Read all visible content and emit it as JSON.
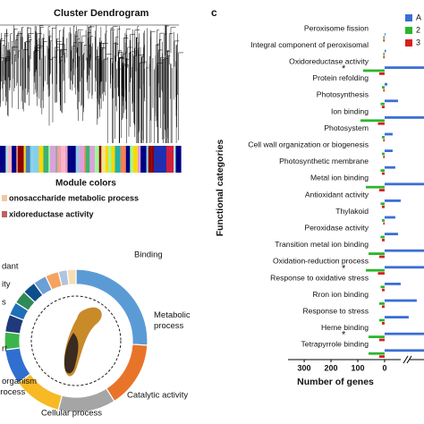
{
  "panel_label": "c",
  "dendrogram": {
    "title": "Cluster Dendrogram",
    "module_label": "Module colors",
    "terms": [
      "onosaccharide metabolic process",
      "xidoreductase activity"
    ]
  },
  "chart_data": [
    {
      "type": "pie",
      "donut": true,
      "categories": [
        "Binding",
        "Metabolic process",
        "Catalytic activity",
        "Cellular process",
        "organism process",
        "rt",
        null,
        "s",
        null,
        "ity",
        "dant",
        null,
        null,
        null
      ],
      "values": [
        26,
        15,
        13,
        11,
        8,
        4,
        4,
        3,
        3,
        3,
        3,
        3,
        2,
        2
      ],
      "colors": [
        "#5b9bd5",
        "#e8742a",
        "#a5a5a5",
        "#f7b924",
        "#2f6fd0",
        "#3cb44b",
        "#1f3a7a",
        "#1e6fb8",
        "#2e8b57",
        "#0d4e8a",
        "#6a9fd8",
        "#f4a460",
        "#b0c4de",
        "#f5deb3"
      ]
    },
    {
      "type": "bar",
      "orientation": "horizontal",
      "ylabel": "Functional categories",
      "xlabel": "Number of genes",
      "categories": [
        "Peroxisome fission",
        "Integral component of peroxisomal",
        "Oxidoreductase activity",
        "Protein refolding",
        "Photosynthesis",
        "Ion binding",
        "Photosystem",
        "Cell wall organization or biogenesis",
        "Photosynthetic membrane",
        "Metal ion binding",
        "Antioxidant activity",
        "Thylakoid",
        "Peroxidase activity",
        "Transition metal ion binding",
        "Oxidation-reduction process",
        "Response to oxidative stress",
        "Rron ion binding",
        "Response to stress",
        "Heme binding",
        "Tetrapyrrole binding"
      ],
      "series": [
        {
          "name": "A",
          "color": "#3b6fd4",
          "values": [
            3,
            5,
            150,
            10,
            50,
            150,
            30,
            30,
            40,
            150,
            60,
            40,
            50,
            150,
            150,
            60,
            120,
            90,
            150,
            150
          ]
        },
        {
          "name": "2",
          "color": "#2db52d",
          "values": [
            -5,
            -5,
            -80,
            -10,
            -15,
            -90,
            -10,
            -10,
            -15,
            -70,
            -15,
            -10,
            -15,
            -60,
            -70,
            -15,
            -20,
            -20,
            -60,
            -60
          ]
        },
        {
          "name": "3",
          "color": "#d62020",
          "values": [
            -5,
            -5,
            -20,
            -5,
            -10,
            -25,
            -5,
            -5,
            -10,
            -20,
            -10,
            -5,
            -10,
            -20,
            -25,
            -10,
            -10,
            -10,
            -20,
            -20
          ]
        }
      ],
      "xlim": [
        -367,
        147
      ],
      "xticks": [
        {
          "value": -300,
          "label": "300"
        },
        {
          "value": -200,
          "label": "200"
        },
        {
          "value": -100,
          "label": "100"
        },
        0
      ],
      "annotations": [
        {
          "text": "*",
          "category": "Oxidoreductase activity"
        },
        {
          "text": "*",
          "category": "Oxidation-reduction process"
        },
        {
          "text": "*",
          "category": "Heme binding"
        }
      ]
    }
  ]
}
